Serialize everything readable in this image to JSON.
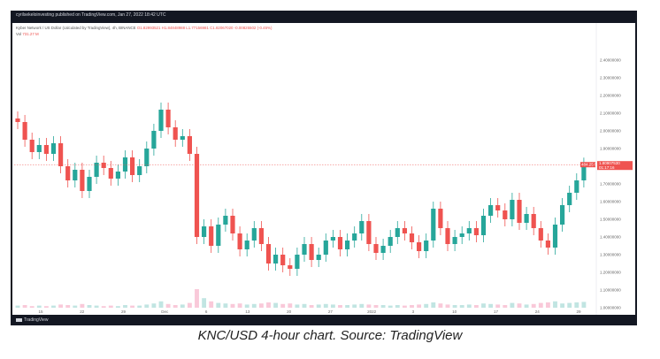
{
  "header": {
    "text": "cyrilsekeloinvesting published on TradingView.com, Jan 27, 2022 18:42 UTC"
  },
  "legend": {
    "title": "Kyber Network / US Dollar (calculated by TradingView), 4h, BINANCE",
    "ohlc": "O1.82993521  H1.84848988  L1.77156981  C1.82067020  -0.00825502 (-0.45%)",
    "vol_label": "Vol",
    "vol_value": "731.27 M"
  },
  "footer": {
    "logo_text": "TradingView"
  },
  "caption": "KNC/USD 4-hour chart. Source: TradingView",
  "price_tag": {
    "volume_tag": "484.25 M",
    "price": "1.80907530",
    "countdown": "01:17:16"
  },
  "colors": {
    "up": "#26a69a",
    "down": "#ef5350",
    "bg_frame": "#131722"
  },
  "chart_data": {
    "type": "candlestick",
    "timeframe": "4h",
    "ylim": [
      1.0,
      2.5
    ],
    "y_ticks": [
      "2.40000000",
      "2.30000000",
      "2.20000000",
      "2.10000000",
      "2.00000000",
      "1.90000000",
      "1.70000000",
      "1.60000000",
      "1.50000000",
      "1.40000000",
      "1.30000000",
      "1.20000000",
      "1.10000000",
      "1.00000000"
    ],
    "x_ticks": [
      "15",
      "22",
      "29",
      "Dec",
      "6",
      "13",
      "20",
      "27",
      "2022",
      "3",
      "10",
      "17",
      "24",
      "29"
    ],
    "current_price": 1.809,
    "close_path": [
      {
        "x": "Nov 09",
        "y": 2.05
      },
      {
        "x": "Nov 10",
        "y": 1.95
      },
      {
        "x": "Nov 11",
        "y": 1.88
      },
      {
        "x": "Nov 12",
        "y": 1.92
      },
      {
        "x": "Nov 13",
        "y": 1.87
      },
      {
        "x": "Nov 14",
        "y": 1.93
      },
      {
        "x": "Nov 15",
        "y": 1.8
      },
      {
        "x": "Nov 16",
        "y": 1.72
      },
      {
        "x": "Nov 17",
        "y": 1.78
      },
      {
        "x": "Nov 18",
        "y": 1.66
      },
      {
        "x": "Nov 19",
        "y": 1.74
      },
      {
        "x": "Nov 20",
        "y": 1.82
      },
      {
        "x": "Nov 21",
        "y": 1.79
      },
      {
        "x": "Nov 22",
        "y": 1.73
      },
      {
        "x": "Nov 23",
        "y": 1.77
      },
      {
        "x": "Nov 24",
        "y": 1.85
      },
      {
        "x": "Nov 25",
        "y": 1.75
      },
      {
        "x": "Nov 26",
        "y": 1.8
      },
      {
        "x": "Nov 27",
        "y": 1.9
      },
      {
        "x": "Nov 28",
        "y": 2.0
      },
      {
        "x": "Nov 29",
        "y": 2.12
      },
      {
        "x": "Nov 30",
        "y": 2.02
      },
      {
        "x": "Dec 01",
        "y": 1.95
      },
      {
        "x": "Dec 02",
        "y": 1.97
      },
      {
        "x": "Dec 03",
        "y": 1.87
      },
      {
        "x": "Dec 04",
        "y": 1.4
      },
      {
        "x": "Dec 05",
        "y": 1.46
      },
      {
        "x": "Dec 06",
        "y": 1.35
      },
      {
        "x": "Dec 07",
        "y": 1.47
      },
      {
        "x": "Dec 08",
        "y": 1.52
      },
      {
        "x": "Dec 09",
        "y": 1.42
      },
      {
        "x": "Dec 10",
        "y": 1.33
      },
      {
        "x": "Dec 11",
        "y": 1.38
      },
      {
        "x": "Dec 12",
        "y": 1.45
      },
      {
        "x": "Dec 13",
        "y": 1.36
      },
      {
        "x": "Dec 14",
        "y": 1.25
      },
      {
        "x": "Dec 15",
        "y": 1.3
      },
      {
        "x": "Dec 16",
        "y": 1.24
      },
      {
        "x": "Dec 17",
        "y": 1.22
      },
      {
        "x": "Dec 18",
        "y": 1.3
      },
      {
        "x": "Dec 19",
        "y": 1.36
      },
      {
        "x": "Dec 20",
        "y": 1.27
      },
      {
        "x": "Dec 21",
        "y": 1.3
      },
      {
        "x": "Dec 22",
        "y": 1.38
      },
      {
        "x": "Dec 23",
        "y": 1.4
      },
      {
        "x": "Dec 24",
        "y": 1.33
      },
      {
        "x": "Dec 25",
        "y": 1.38
      },
      {
        "x": "Dec 26",
        "y": 1.42
      },
      {
        "x": "Dec 27",
        "y": 1.49
      },
      {
        "x": "Dec 28",
        "y": 1.36
      },
      {
        "x": "Dec 29",
        "y": 1.31
      },
      {
        "x": "Dec 30",
        "y": 1.35
      },
      {
        "x": "Dec 31",
        "y": 1.4
      },
      {
        "x": "Jan 01",
        "y": 1.45
      },
      {
        "x": "Jan 02",
        "y": 1.42
      },
      {
        "x": "Jan 03",
        "y": 1.37
      },
      {
        "x": "Jan 04",
        "y": 1.32
      },
      {
        "x": "Jan 05",
        "y": 1.38
      },
      {
        "x": "Jan 06",
        "y": 1.56
      },
      {
        "x": "Jan 07",
        "y": 1.45
      },
      {
        "x": "Jan 08",
        "y": 1.36
      },
      {
        "x": "Jan 09",
        "y": 1.4
      },
      {
        "x": "Jan 10",
        "y": 1.42
      },
      {
        "x": "Jan 11",
        "y": 1.45
      },
      {
        "x": "Jan 12",
        "y": 1.41
      },
      {
        "x": "Jan 13",
        "y": 1.52
      },
      {
        "x": "Jan 14",
        "y": 1.58
      },
      {
        "x": "Jan 15",
        "y": 1.55
      },
      {
        "x": "Jan 16",
        "y": 1.5
      },
      {
        "x": "Jan 17",
        "y": 1.61
      },
      {
        "x": "Jan 18",
        "y": 1.48
      },
      {
        "x": "Jan 19",
        "y": 1.53
      },
      {
        "x": "Jan 20",
        "y": 1.45
      },
      {
        "x": "Jan 21",
        "y": 1.38
      },
      {
        "x": "Jan 22",
        "y": 1.34
      },
      {
        "x": "Jan 23",
        "y": 1.47
      },
      {
        "x": "Jan 24",
        "y": 1.58
      },
      {
        "x": "Jan 25",
        "y": 1.65
      },
      {
        "x": "Jan 26",
        "y": 1.72
      },
      {
        "x": "Jan 27",
        "y": 1.809
      }
    ],
    "volume": [
      0.04,
      0.05,
      0.03,
      0.04,
      0.03,
      0.04,
      0.06,
      0.05,
      0.04,
      0.07,
      0.05,
      0.04,
      0.03,
      0.04,
      0.03,
      0.05,
      0.04,
      0.04,
      0.06,
      0.08,
      0.12,
      0.07,
      0.05,
      0.06,
      0.09,
      0.35,
      0.18,
      0.12,
      0.09,
      0.08,
      0.07,
      0.08,
      0.06,
      0.07,
      0.08,
      0.1,
      0.09,
      0.07,
      0.08,
      0.06,
      0.07,
      0.05,
      0.06,
      0.07,
      0.06,
      0.05,
      0.05,
      0.06,
      0.07,
      0.06,
      0.05,
      0.05,
      0.04,
      0.05,
      0.04,
      0.05,
      0.06,
      0.07,
      0.1,
      0.08,
      0.06,
      0.05,
      0.05,
      0.06,
      0.05,
      0.08,
      0.07,
      0.06,
      0.05,
      0.09,
      0.08,
      0.06,
      0.07,
      0.09,
      0.1,
      0.12,
      0.08,
      0.09,
      0.1,
      0.11
    ]
  }
}
